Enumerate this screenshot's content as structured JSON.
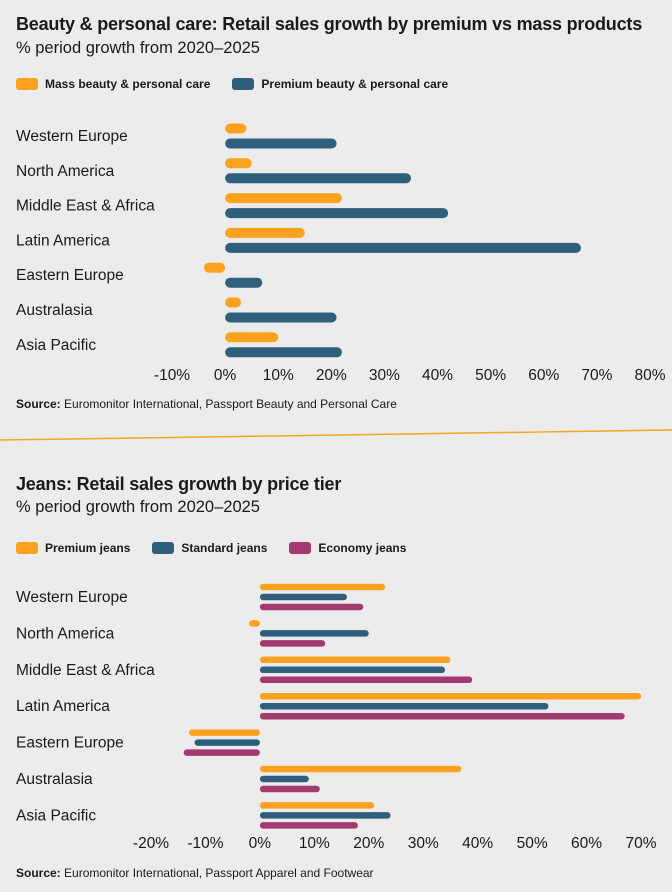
{
  "colors": {
    "mass": "#fca21f",
    "premium": "#2f5f7a",
    "premium_jeans": "#fca21f",
    "standard_jeans": "#2f5f7a",
    "economy_jeans": "#a33b70",
    "divider": "#f5a623"
  },
  "panel1": {
    "title": "Beauty & personal care: Retail sales growth by premium vs mass products",
    "subtitle": "% period growth from 2020–2025",
    "source_label": "Source:",
    "source_text": " Euromonitor International, Passport Beauty and Personal Care"
  },
  "panel2": {
    "title": "Jeans: Retail sales growth by price tier",
    "subtitle": "% period growth from 2020–2025",
    "source_label": "Source:",
    "source_text": " Euromonitor International, Passport Apparel and Footwear"
  },
  "chart_data": [
    {
      "type": "bar",
      "orientation": "horizontal",
      "title": "Beauty & personal care: Retail sales growth by premium vs mass products",
      "subtitle": "% period growth from 2020–2025",
      "categories": [
        "Western Europe",
        "North America",
        "Middle East & Africa",
        "Latin America",
        "Eastern Europe",
        "Australasia",
        "Asia Pacific"
      ],
      "series": [
        {
          "name": "Mass beauty & personal care",
          "color": "#fca21f",
          "values": [
            4,
            5,
            22,
            15,
            -4,
            3,
            10
          ]
        },
        {
          "name": "Premium beauty & personal care",
          "color": "#2f5f7a",
          "values": [
            21,
            35,
            42,
            67,
            7,
            21,
            22
          ]
        }
      ],
      "xlim": [
        -10,
        80
      ],
      "xticks": [
        -10,
        0,
        10,
        20,
        30,
        40,
        50,
        60,
        70,
        80
      ],
      "tick_labels": [
        "-10%",
        "0%",
        "10%",
        "20%",
        "30%",
        "40%",
        "50%",
        "60%",
        "70%",
        "80%"
      ],
      "legend": "top-left"
    },
    {
      "type": "bar",
      "orientation": "horizontal",
      "title": "Jeans: Retail sales growth by price tier",
      "subtitle": "% period growth from 2020–2025",
      "categories": [
        "Western Europe",
        "North America",
        "Middle East & Africa",
        "Latin America",
        "Eastern Europe",
        "Australasia",
        "Asia Pacific"
      ],
      "series": [
        {
          "name": "Premium jeans",
          "color": "#fca21f",
          "values": [
            23,
            -2,
            35,
            70,
            -13,
            37,
            21
          ]
        },
        {
          "name": "Standard jeans",
          "color": "#2f5f7a",
          "values": [
            16,
            20,
            34,
            53,
            -12,
            9,
            24
          ]
        },
        {
          "name": "Economy jeans",
          "color": "#a33b70",
          "values": [
            19,
            12,
            39,
            67,
            -14,
            11,
            18
          ]
        }
      ],
      "xlim": [
        -20,
        70
      ],
      "xticks": [
        -20,
        -10,
        0,
        10,
        20,
        30,
        40,
        50,
        60,
        70
      ],
      "tick_labels": [
        "-20%",
        "-10%",
        "0%",
        "10%",
        "20%",
        "30%",
        "40%",
        "50%",
        "60%",
        "70%"
      ],
      "legend": "top-left"
    }
  ]
}
